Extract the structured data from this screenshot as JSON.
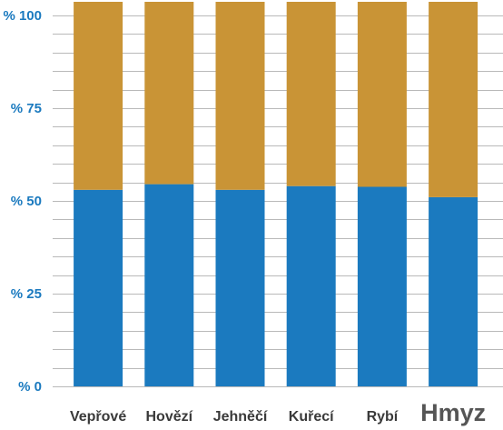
{
  "chart_data": {
    "type": "bar",
    "stacked": true,
    "title": "",
    "xlabel": "",
    "ylabel": "",
    "ylim": [
      0,
      100
    ],
    "yticks": [
      "% 0",
      "% 25",
      "% 50",
      "% 75",
      "% 100"
    ],
    "grid": true,
    "categories": [
      "Vepřové",
      "Hovězí",
      "Jehněčí",
      "Kuřecí",
      "Rybí",
      "Hmyz"
    ],
    "emphasized_category": "Hmyz",
    "series": [
      {
        "color": "#1b7abf",
        "values": [
          53,
          54.5,
          53,
          54,
          53.8,
          51
        ]
      },
      {
        "color": "#c99436",
        "values": [
          47,
          45.5,
          47,
          46,
          46.2,
          49
        ]
      }
    ],
    "colors": {
      "grid": "#b9b9b9",
      "ytick": "#1b7abf",
      "xtick": "#3a3a3a",
      "xtick_emphasized": "#555555"
    }
  }
}
